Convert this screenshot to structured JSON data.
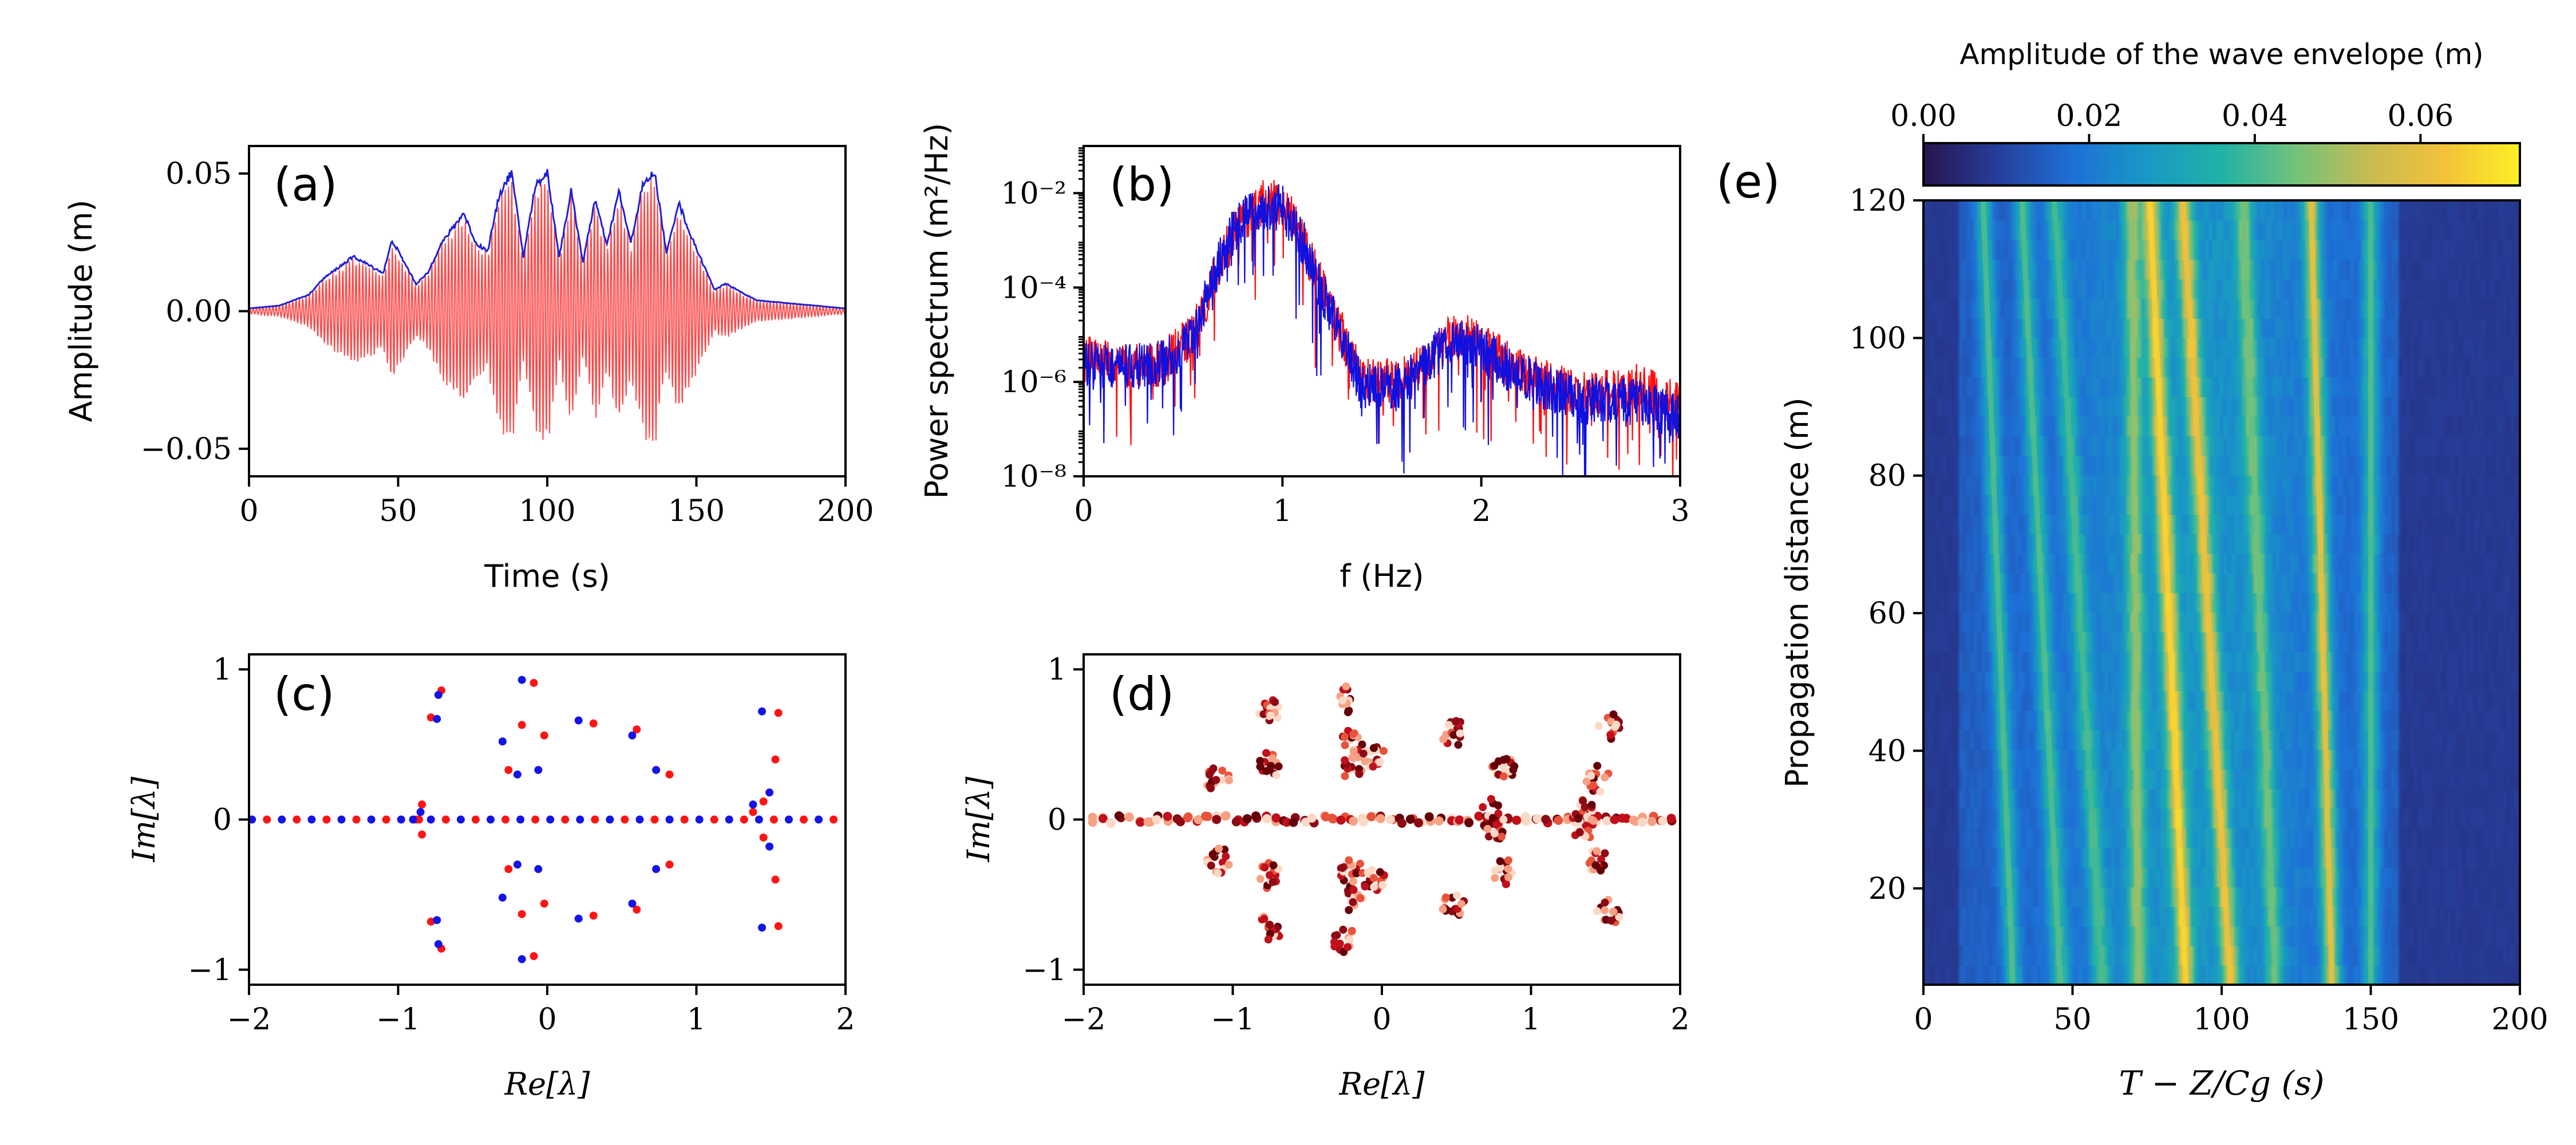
{
  "chart_data": [
    {
      "id": "a",
      "type": "line",
      "panel_label": "(a)",
      "xlabel": "Time (s)",
      "ylabel": "Amplitude (m)",
      "xlim": [
        0,
        200
      ],
      "ylim": [
        -0.06,
        0.06
      ],
      "xticks": [
        0,
        50,
        100,
        150,
        200
      ],
      "xtick_labels": [
        "0",
        "50",
        "100",
        "150",
        "200"
      ],
      "yticks": [
        -0.05,
        0.0,
        0.05
      ],
      "ytick_labels": [
        "−0.05",
        "0.00",
        "0.05"
      ],
      "series": [
        {
          "name": "surface elevation",
          "color": "#ff4b4b",
          "kind": "oscillation"
        },
        {
          "name": "wave envelope",
          "color": "#1f1fd6",
          "x": [
            0,
            10,
            20,
            25,
            30,
            35,
            40,
            45,
            48,
            52,
            56,
            60,
            64,
            68,
            72,
            76,
            80,
            84,
            88,
            92,
            96,
            100,
            104,
            108,
            112,
            116,
            120,
            124,
            128,
            132,
            136,
            140,
            144,
            148,
            152,
            156,
            160,
            170,
            180,
            190,
            200
          ],
          "values": [
            0.001,
            0.002,
            0.006,
            0.012,
            0.016,
            0.02,
            0.017,
            0.014,
            0.026,
            0.018,
            0.01,
            0.014,
            0.024,
            0.03,
            0.036,
            0.025,
            0.022,
            0.043,
            0.051,
            0.02,
            0.046,
            0.051,
            0.02,
            0.044,
            0.018,
            0.041,
            0.024,
            0.044,
            0.025,
            0.046,
            0.051,
            0.021,
            0.04,
            0.028,
            0.018,
            0.008,
            0.01,
            0.004,
            0.003,
            0.002,
            0.001
          ]
        }
      ]
    },
    {
      "id": "b",
      "type": "line",
      "panel_label": "(b)",
      "xlabel": "f (Hz)",
      "ylabel": "Power spectrum (m²/Hz)",
      "yscale": "log",
      "xlim": [
        0,
        3
      ],
      "ylim": [
        1e-08,
        0.1
      ],
      "xticks": [
        0,
        1,
        2,
        3
      ],
      "xtick_labels": [
        "0",
        "1",
        "2",
        "3"
      ],
      "yticks": [
        1e-08,
        1e-06,
        0.0001,
        0.01
      ],
      "ytick_labels": [
        "10⁻⁸",
        "10⁻⁶",
        "10⁻⁴",
        "10⁻²"
      ],
      "series": [
        {
          "name": "spectrum (red)",
          "color": "#ff1010",
          "f": [
            0,
            0.2,
            0.4,
            0.55,
            0.7,
            0.8,
            0.9,
            1.0,
            1.1,
            1.2,
            1.4,
            1.6,
            1.8,
            1.9,
            2.0,
            2.2,
            2.5,
            2.8,
            3.0
          ],
          "log10_values": [
            -5.5,
            -5.7,
            -5.6,
            -5.0,
            -3.3,
            -2.6,
            -2.2,
            -2.2,
            -3.0,
            -4.0,
            -6.0,
            -6.0,
            -5.2,
            -5.0,
            -5.2,
            -5.8,
            -6.3,
            -6.1,
            -6.5
          ]
        },
        {
          "name": "spectrum (blue)",
          "color": "#1010e0",
          "f": [
            0,
            0.2,
            0.4,
            0.55,
            0.7,
            0.8,
            0.9,
            1.0,
            1.1,
            1.2,
            1.4,
            1.6,
            1.8,
            1.9,
            2.0,
            2.2,
            2.5,
            2.8,
            3.0
          ],
          "log10_values": [
            -5.6,
            -5.7,
            -5.6,
            -5.1,
            -3.2,
            -2.5,
            -2.3,
            -2.3,
            -3.0,
            -4.1,
            -6.1,
            -6.1,
            -5.3,
            -5.1,
            -5.3,
            -5.9,
            -6.4,
            -6.4,
            -6.8
          ]
        }
      ]
    },
    {
      "id": "c",
      "type": "scatter",
      "panel_label": "(c)",
      "xlabel": "Re[λ]",
      "ylabel": "Im[λ]",
      "xlim": [
        -2,
        2
      ],
      "ylim": [
        -1.1,
        1.1
      ],
      "xticks": [
        -2,
        -1,
        0,
        1,
        2
      ],
      "xtick_labels": [
        "−2",
        "−1",
        "0",
        "1",
        "2"
      ],
      "yticks": [
        -1,
        0,
        1
      ],
      "ytick_labels": [
        "−1",
        "0",
        "1"
      ],
      "series": [
        {
          "name": "eigenvalues (red)",
          "color": "#ff1414",
          "points": [
            [
              -0.84,
              0.1
            ],
            [
              -0.86,
              0.0
            ],
            [
              -0.78,
              0.68
            ],
            [
              -0.71,
              0.86
            ],
            [
              -0.26,
              0.33
            ],
            [
              -0.17,
              0.63
            ],
            [
              -0.09,
              0.91
            ],
            [
              -0.02,
              0.56
            ],
            [
              0.31,
              0.64
            ],
            [
              0.6,
              0.6
            ],
            [
              0.82,
              0.3
            ],
            [
              1.38,
              0.05
            ],
            [
              1.45,
              0.12
            ],
            [
              1.53,
              0.4
            ],
            [
              1.55,
              0.71
            ],
            [
              -0.84,
              -0.1
            ],
            [
              -0.78,
              -0.68
            ],
            [
              -0.71,
              -0.86
            ],
            [
              -0.26,
              -0.33
            ],
            [
              -0.17,
              -0.63
            ],
            [
              -0.09,
              -0.91
            ],
            [
              -0.02,
              -0.56
            ],
            [
              0.31,
              -0.64
            ],
            [
              0.6,
              -0.6
            ],
            [
              0.82,
              -0.3
            ],
            [
              1.45,
              -0.12
            ],
            [
              1.53,
              -0.4
            ],
            [
              1.55,
              -0.71
            ]
          ]
        },
        {
          "name": "eigenvalues (blue)",
          "color": "#1414e6",
          "points": [
            [
              -0.9,
              0.0
            ],
            [
              -0.85,
              0.05
            ],
            [
              -0.74,
              0.67
            ],
            [
              -0.73,
              0.83
            ],
            [
              -0.3,
              0.52
            ],
            [
              -0.2,
              0.3
            ],
            [
              -0.17,
              0.93
            ],
            [
              -0.06,
              0.33
            ],
            [
              0.21,
              0.66
            ],
            [
              0.57,
              0.56
            ],
            [
              0.73,
              0.33
            ],
            [
              1.38,
              0.1
            ],
            [
              1.44,
              0.72
            ],
            [
              1.49,
              0.18
            ],
            [
              -0.74,
              -0.67
            ],
            [
              -0.73,
              -0.83
            ],
            [
              -0.3,
              -0.52
            ],
            [
              -0.2,
              -0.3
            ],
            [
              -0.17,
              -0.93
            ],
            [
              -0.06,
              -0.33
            ],
            [
              0.21,
              -0.66
            ],
            [
              0.57,
              -0.56
            ],
            [
              0.73,
              -0.33
            ],
            [
              1.44,
              -0.72
            ],
            [
              1.49,
              -0.18
            ]
          ]
        }
      ]
    },
    {
      "id": "d",
      "type": "scatter",
      "panel_label": "(d)",
      "xlabel": "Re[λ]",
      "ylabel": "Im[λ]",
      "xlim": [
        -2,
        2
      ],
      "ylim": [
        -1.1,
        1.1
      ],
      "xticks": [
        -2,
        -1,
        0,
        1,
        2
      ],
      "xtick_labels": [
        "−2",
        "−1",
        "0",
        "1",
        "2"
      ],
      "yticks": [
        -1,
        0,
        1
      ],
      "ytick_labels": [
        "−1",
        "0",
        "1"
      ],
      "clusters": [
        [
          -1.1,
          0.27
        ],
        [
          -0.75,
          0.72
        ],
        [
          -0.75,
          0.37
        ],
        [
          -0.25,
          0.8
        ],
        [
          -0.2,
          0.52
        ],
        [
          -0.2,
          0.35
        ],
        [
          -0.05,
          0.42
        ],
        [
          0.48,
          0.58
        ],
        [
          0.82,
          0.35
        ],
        [
          1.52,
          0.62
        ],
        [
          1.45,
          0.27
        ],
        [
          -1.1,
          -0.27
        ],
        [
          -0.75,
          -0.72
        ],
        [
          -0.75,
          -0.37
        ],
        [
          -0.25,
          -0.8
        ],
        [
          -0.2,
          -0.52
        ],
        [
          -0.2,
          -0.35
        ],
        [
          -0.05,
          -0.42
        ],
        [
          0.48,
          -0.58
        ],
        [
          0.82,
          -0.35
        ],
        [
          1.52,
          -0.62
        ],
        [
          1.45,
          -0.27
        ],
        [
          0.75,
          0.05
        ],
        [
          1.35,
          0.05
        ],
        [
          0.75,
          -0.05
        ],
        [
          1.35,
          -0.05
        ]
      ],
      "colors": [
        "#fcd9c6",
        "#f7a184",
        "#e8533b",
        "#c0101c",
        "#8e0a14",
        "#650008"
      ]
    },
    {
      "id": "e",
      "type": "heatmap",
      "panel_label": "(e)",
      "xlabel": "T − Z/Cg (s)",
      "ylabel": "Propagation distance (m)",
      "xlim": [
        0,
        200
      ],
      "ylim": [
        6,
        120
      ],
      "xticks": [
        0,
        50,
        100,
        150,
        200
      ],
      "xtick_labels": [
        "0",
        "50",
        "100",
        "150",
        "200"
      ],
      "yticks": [
        20,
        40,
        60,
        80,
        100,
        120
      ],
      "ytick_labels": [
        "20",
        "40",
        "60",
        "80",
        "100",
        "120"
      ],
      "colorbar": {
        "label": "Amplitude of the wave envelope (m)",
        "range": [
          0,
          0.072
        ],
        "ticks": [
          0,
          0.02,
          0.04,
          0.06
        ],
        "tick_labels": [
          "0.00",
          "0.02",
          "0.04",
          "0.06"
        ],
        "colors": [
          "#27144e",
          "#263e9a",
          "#1d70d6",
          "#1999c4",
          "#20b2a6",
          "#74c27a",
          "#c8bb52",
          "#f3c239",
          "#fcf024"
        ]
      },
      "ridges": [
        {
          "t_at_bottom": 30,
          "t_at_top": 20,
          "amp": 0.03
        },
        {
          "t_at_bottom": 46,
          "t_at_top": 33,
          "amp": 0.03
        },
        {
          "t_at_bottom": 60,
          "t_at_top": 44,
          "amp": 0.028
        },
        {
          "t_at_bottom": 72,
          "t_at_top": 70,
          "amp": 0.036
        },
        {
          "t_at_bottom": 88,
          "t_at_top": 76,
          "amp": 0.055
        },
        {
          "t_at_bottom": 103,
          "t_at_top": 87,
          "amp": 0.05
        },
        {
          "t_at_bottom": 118,
          "t_at_top": 107,
          "amp": 0.032
        },
        {
          "t_at_bottom": 137,
          "t_at_top": 130,
          "amp": 0.05
        },
        {
          "t_at_bottom": 150,
          "t_at_top": 150,
          "amp": 0.03
        }
      ]
    }
  ]
}
